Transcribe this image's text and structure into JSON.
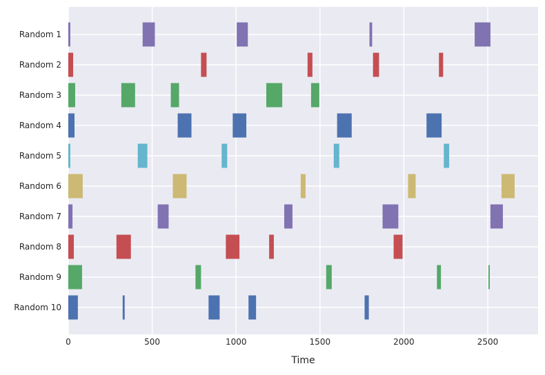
{
  "chart_data": {
    "type": "broken_barh",
    "xlabel": "Time",
    "ylabel": "",
    "xlim": [
      0,
      2800
    ],
    "xticks": [
      0,
      500,
      1000,
      1500,
      2000,
      2500
    ],
    "grid": true,
    "background": "#eaeaf2",
    "categories": [
      "Random 1",
      "Random 2",
      "Random 3",
      "Random 4",
      "Random 5",
      "Random 6",
      "Random 7",
      "Random 8",
      "Random 9",
      "Random 10"
    ],
    "series": [
      {
        "color": "#8172b2",
        "intervals": [
          [
            0,
            12
          ],
          [
            443,
            73
          ],
          [
            1004,
            66
          ],
          [
            1795,
            16
          ],
          [
            2422,
            94
          ]
        ]
      },
      {
        "color": "#c44e52",
        "intervals": [
          [
            0,
            29
          ],
          [
            791,
            33
          ],
          [
            1426,
            29
          ],
          [
            1816,
            36
          ],
          [
            2209,
            25
          ]
        ]
      },
      {
        "color": "#55a868",
        "intervals": [
          [
            0,
            41
          ],
          [
            316,
            82
          ],
          [
            611,
            49
          ],
          [
            1180,
            95
          ],
          [
            1447,
            49
          ]
        ]
      },
      {
        "color": "#4c72b0",
        "intervals": [
          [
            0,
            37
          ],
          [
            652,
            82
          ],
          [
            980,
            81
          ],
          [
            1602,
            87
          ],
          [
            2135,
            90
          ]
        ]
      },
      {
        "color": "#64b5cd",
        "intervals": [
          [
            0,
            12
          ],
          [
            414,
            57
          ],
          [
            914,
            33
          ],
          [
            1582,
            33
          ],
          [
            2238,
            32
          ]
        ]
      },
      {
        "color": "#ccb974",
        "intervals": [
          [
            0,
            86
          ],
          [
            623,
            82
          ],
          [
            1385,
            29
          ],
          [
            2025,
            45
          ],
          [
            2582,
            78
          ]
        ]
      },
      {
        "color": "#8172b2",
        "intervals": [
          [
            0,
            25
          ],
          [
            533,
            65
          ],
          [
            1287,
            49
          ],
          [
            1873,
            94
          ],
          [
            2516,
            74
          ]
        ]
      },
      {
        "color": "#c44e52",
        "intervals": [
          [
            0,
            33
          ],
          [
            287,
            86
          ],
          [
            939,
            81
          ],
          [
            1197,
            28
          ],
          [
            1939,
            53
          ]
        ]
      },
      {
        "color": "#55a868",
        "intervals": [
          [
            0,
            82
          ],
          [
            758,
            33
          ],
          [
            1537,
            33
          ],
          [
            2197,
            24
          ],
          [
            2504,
            8
          ]
        ]
      },
      {
        "color": "#4c72b0",
        "intervals": [
          [
            0,
            57
          ],
          [
            324,
            12
          ],
          [
            836,
            66
          ],
          [
            1074,
            45
          ],
          [
            1766,
            25
          ]
        ]
      }
    ]
  }
}
